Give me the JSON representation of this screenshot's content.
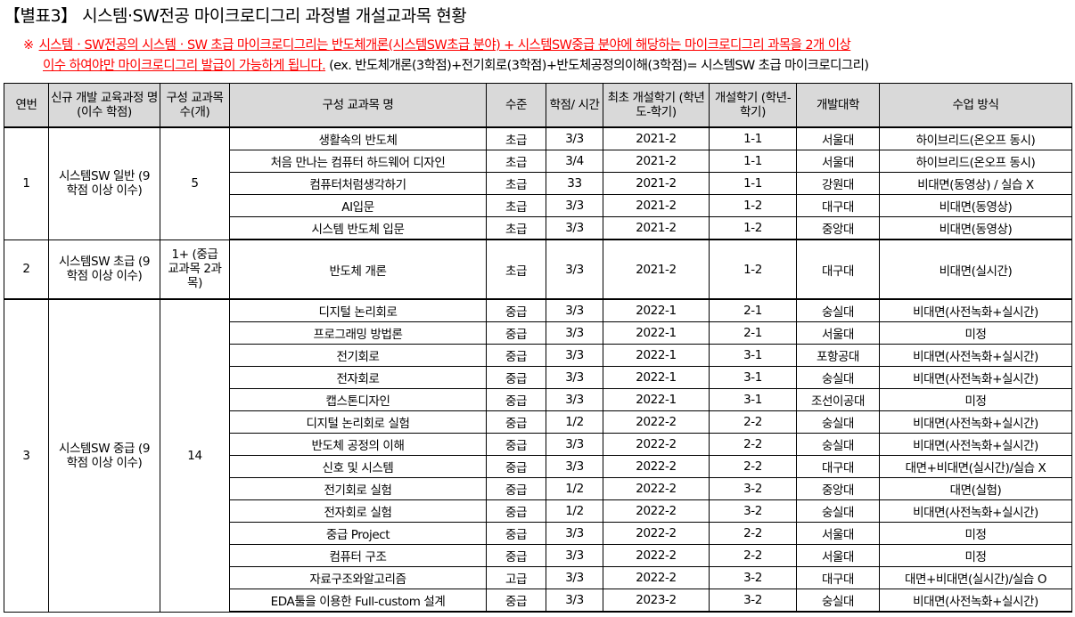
{
  "title": "【별표3】 시스템·SW전공 마이크로디그리 과정별 개설교과목 현황",
  "note": {
    "mark": "※",
    "red_line1": "시스템ㆍSW전공의 시스템ㆍSW 초급 마이크로디그리는 반도체개론(시스템SW초급 분야) + 시스템SW중급 분야에 해당하는 마이크로디그리 과목을 2개 이상",
    "red_line2": "이수 하여야만 마이크로디그리 발급이 가능하게 됩니다.",
    "example": " (ex. 반도체개론(3학점)+전기회로(3학점)+반도체공정의이해(3학점)= 시스템SW 초급 마이크로디그리)"
  },
  "table": {
    "headers": [
      "연번",
      "신규 개발 교육과정 명 (이수 학점)",
      "구성 교과목 수(개)",
      "구성 교과목 명",
      "수준",
      "학점/ 시간",
      "최초 개설학기 (학년도-학기)",
      "개설학기 (학년-학기)",
      "개발대학",
      "수업 방식"
    ],
    "groups": [
      {
        "no": "1",
        "program": "시스템SW 일반 (9학점 이상 이수)",
        "count": "5",
        "courses": [
          [
            "생활속의 반도체",
            "초급",
            "3/3",
            "2021-2",
            "1-1",
            "서울대",
            "하이브리드(온오프 동시)"
          ],
          [
            "처음 만나는 컴퓨터 하드웨어 디자인",
            "초급",
            "3/4",
            "2021-2",
            "1-1",
            "서울대",
            "하이브리드(온오프 동시)"
          ],
          [
            "컴퓨터처럼생각하기",
            "초급",
            "33",
            "2021-2",
            "1-1",
            "강원대",
            "비대면(동영상) / 실습 X"
          ],
          [
            "AI입문",
            "초급",
            "3/3",
            "2021-2",
            "1-2",
            "대구대",
            "비대면(동영상)"
          ],
          [
            "시스템 반도체 입문",
            "초급",
            "3/3",
            "2021-2",
            "1-2",
            "중앙대",
            "비대면(동영상)"
          ]
        ]
      },
      {
        "no": "2",
        "program": "시스템SW 초급 (9학점 이상 이수)",
        "count": "1+ (중급교과목 2과목)",
        "courses": [
          [
            "반도체 개론",
            "초급",
            "3/3",
            "2021-2",
            "1-2",
            "대구대",
            "비대면(실시간)"
          ]
        ]
      },
      {
        "no": "3",
        "program": "시스템SW 중급 (9학점 이상 이수)",
        "count": "14",
        "courses": [
          [
            "디지털 논리회로",
            "중급",
            "3/3",
            "2022-1",
            "2-1",
            "숭실대",
            "비대면(사전녹화+실시간)"
          ],
          [
            "프로그래밍 방법론",
            "중급",
            "3/3",
            "2022-1",
            "2-1",
            "서울대",
            "미정"
          ],
          [
            "전기회로",
            "중급",
            "3/3",
            "2022-1",
            "3-1",
            "포항공대",
            "비대면(사전녹화+실시간)"
          ],
          [
            "전자회로",
            "중급",
            "3/3",
            "2022-1",
            "3-1",
            "숭실대",
            "비대면(사전녹화+실시간)"
          ],
          [
            "캡스톤디자인",
            "중급",
            "3/3",
            "2022-1",
            "3-1",
            "조선이공대",
            "미정"
          ],
          [
            "디지털 논리회로 실험",
            "중급",
            "1/2",
            "2022-2",
            "2-2",
            "숭실대",
            "비대면(사전녹화+실시간)"
          ],
          [
            "반도체 공정의 이해",
            "중급",
            "3/3",
            "2022-2",
            "2-2",
            "숭실대",
            "비대면(사전녹화+실시간)"
          ],
          [
            "신호 및 시스템",
            "중급",
            "3/3",
            "2022-2",
            "2-2",
            "대구대",
            "대면+비대면(실시간)/실습 X"
          ],
          [
            "전기회로 실험",
            "중급",
            "1/2",
            "2022-2",
            "3-2",
            "중앙대",
            "대면(실험)"
          ],
          [
            "전자회로 실험",
            "중급",
            "1/2",
            "2022-2",
            "3-2",
            "숭실대",
            "비대면(사전녹화+실시간)"
          ],
          [
            "중급 Project",
            "중급",
            "3/3",
            "2022-2",
            "2-2",
            "서울대",
            "미정"
          ],
          [
            "컴퓨터 구조",
            "중급",
            "3/3",
            "2022-2",
            "2-2",
            "서울대",
            "미정"
          ],
          [
            "자료구조와알고리즘",
            "고급",
            "3/3",
            "2022-2",
            "3-2",
            "대구대",
            "대면+비대면(실시간)/실습 O"
          ],
          [
            "EDA툴을 이용한 Full-custom 설계",
            "중급",
            "3/3",
            "2023-2",
            "3-2",
            "숭실대",
            "비대면(사전녹화+실시간)"
          ]
        ]
      }
    ]
  }
}
